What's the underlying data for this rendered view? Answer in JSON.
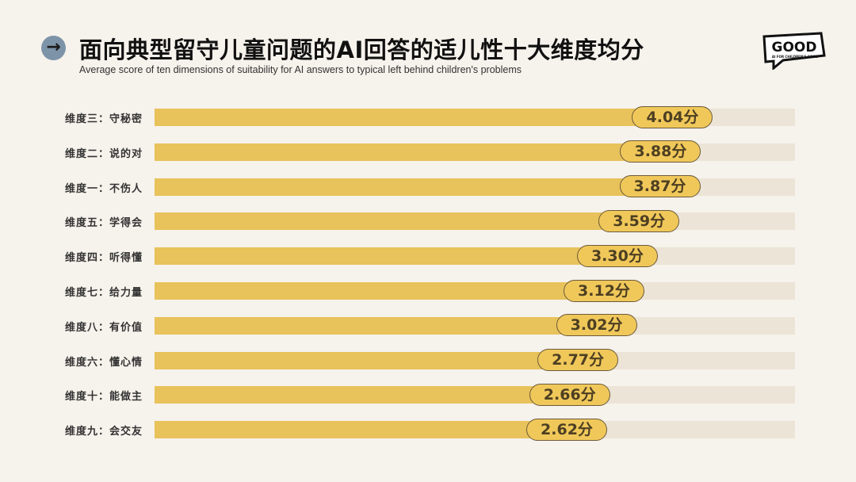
{
  "header": {
    "title": "面向典型留守儿童问题的AI回答的适儿性十大维度均分",
    "subtitle": "Average score of ten dimensions of suitability for AI answers to typical left behind children's problems",
    "icon": "arrow-right-icon"
  },
  "logo": {
    "text": "GOOD",
    "tagline": "AI FOR CHILDREN'S GOOD"
  },
  "chart_data": {
    "type": "bar",
    "orientation": "horizontal",
    "unit": "分",
    "categories": [
      "维度三：守秘密",
      "维度二：说的对",
      "维度一：不伤人",
      "维度五：学得会",
      "维度四：听得懂",
      "维度七：给力量",
      "维度八：有价值",
      "维度六：懂心情",
      "维度十：能做主",
      "维度九：会交友"
    ],
    "values": [
      4.04,
      3.88,
      3.87,
      3.59,
      3.3,
      3.12,
      3.02,
      2.77,
      2.66,
      2.62
    ],
    "labels": [
      "4.04分",
      "3.88分",
      "3.87分",
      "3.59分",
      "3.30分",
      "3.12分",
      "3.02分",
      "2.77分",
      "2.66分",
      "2.62分"
    ],
    "colors": {
      "bar": "#e8c25a",
      "track": "#ece4d6",
      "pill": "#f0c85a"
    },
    "grid": false
  }
}
